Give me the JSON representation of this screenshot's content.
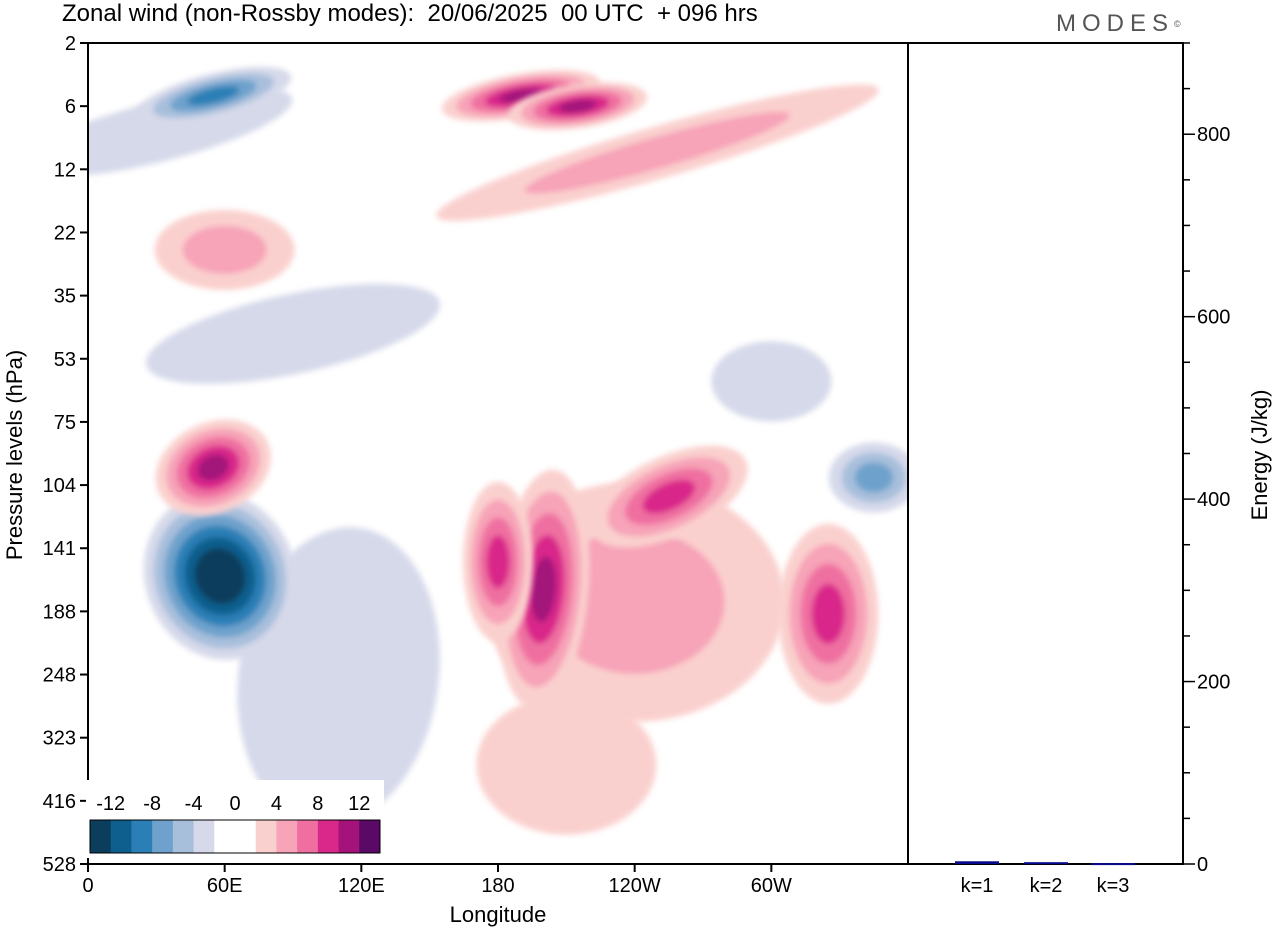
{
  "title": "Zonal wind (non-Rossby modes):  20/06/2025  00 UTC  + 096 hrs",
  "brand": "MODES",
  "brand_mark": "©",
  "chart_data": [
    {
      "type": "heatmap",
      "xlabel": "Longitude",
      "ylabel": "Pressure levels (hPa)",
      "x_ticks": [
        "0",
        "60E",
        "120E",
        "180",
        "120W",
        "60W"
      ],
      "y_ticks": [
        "2",
        "6",
        "12",
        "22",
        "35",
        "53",
        "75",
        "104",
        "141",
        "188",
        "248",
        "323",
        "416",
        "528"
      ],
      "colorbar": {
        "labels": [
          "-12",
          "-8",
          "-4",
          "0",
          "4",
          "8",
          "12"
        ],
        "colors": [
          "#0b3d5c",
          "#0e5f8e",
          "#2a7fb6",
          "#6ea2cc",
          "#a8bfdc",
          "#d6d9ea",
          "#ffffff",
          "#ffffff",
          "#fad0ce",
          "#f7a3b8",
          "#ef6fa0",
          "#d9288a",
          "#a3137a",
          "#5a0a66"
        ]
      },
      "features": [
        {
          "lon": 58,
          "hPa": 160,
          "u": -14
        },
        {
          "lon": 55,
          "hPa": 95,
          "u": 10
        },
        {
          "lon": 200,
          "hPa": 170,
          "u": 10
        },
        {
          "lon": 180,
          "hPa": 150,
          "u": 8
        },
        {
          "lon": 255,
          "hPa": 110,
          "u": 8
        },
        {
          "lon": 325,
          "hPa": 190,
          "u": 8
        },
        {
          "lon": 190,
          "hPa": 5,
          "u": 10
        },
        {
          "lon": 215,
          "hPa": 6,
          "u": 10
        },
        {
          "lon": 55,
          "hPa": 5,
          "u": -8
        },
        {
          "lon": 345,
          "hPa": 100,
          "u": -6
        }
      ]
    },
    {
      "type": "bar",
      "ylabel": "Energy (J/kg)",
      "categories": [
        "k=1",
        "k=2",
        "k=3"
      ],
      "values": [
        3,
        2,
        1
      ],
      "ylim": [
        0,
        900
      ],
      "y_ticks": [
        "0",
        "200",
        "400",
        "600",
        "800"
      ],
      "bar_color": "#0a0a8c"
    }
  ]
}
